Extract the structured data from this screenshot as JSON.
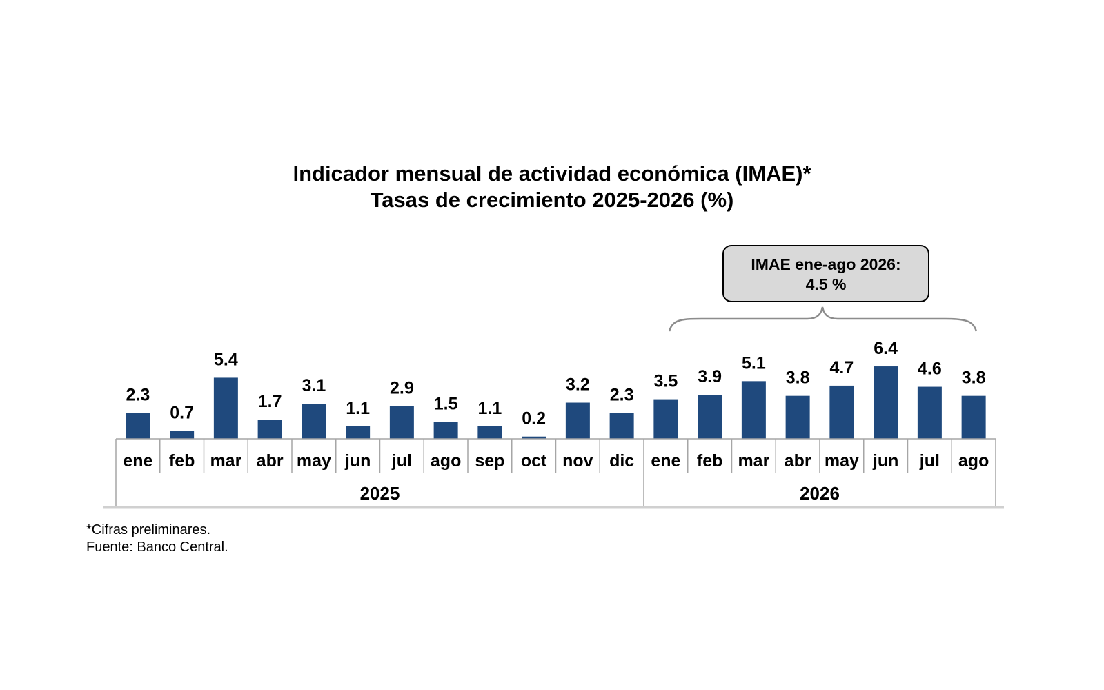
{
  "chart_data": {
    "type": "bar",
    "title": "Indicador mensual de actividad económica (IMAE)*",
    "subtitle": "Tasas de crecimiento 2025-2026 (%)",
    "categories": [
      "ene",
      "feb",
      "mar",
      "abr",
      "may",
      "jun",
      "jul",
      "ago",
      "sep",
      "oct",
      "nov",
      "dic",
      "ene",
      "feb",
      "mar",
      "abr",
      "may",
      "jun",
      "jul",
      "ago"
    ],
    "values": [
      2.3,
      0.7,
      5.4,
      1.7,
      3.1,
      1.1,
      2.9,
      1.5,
      1.1,
      0.2,
      3.2,
      2.3,
      3.5,
      3.9,
      5.1,
      3.8,
      4.7,
      6.4,
      4.6,
      3.8
    ],
    "value_labels": [
      "2.3",
      "0.7",
      "5.4",
      "1.7",
      "3.1",
      "1.1",
      "2.9",
      "1.5",
      "1.1",
      "0.2",
      "3.2",
      "2.3",
      "3.5",
      "3.9",
      "5.1",
      "3.8",
      "4.7",
      "6.4",
      "4.6",
      "3.8"
    ],
    "groups": [
      {
        "label": "2025",
        "count": 12
      },
      {
        "label": "2026",
        "count": 8
      }
    ],
    "bar_color": "#1f497d",
    "ylim": [
      0,
      6.5
    ],
    "grid": false,
    "annotation": {
      "line1": "IMAE ene-ago 2026:",
      "line2": "4.5 %",
      "spans_categories": [
        12,
        19
      ]
    }
  },
  "footnote": {
    "note": "*Cifras preliminares.",
    "source": "Fuente: Banco Central."
  }
}
